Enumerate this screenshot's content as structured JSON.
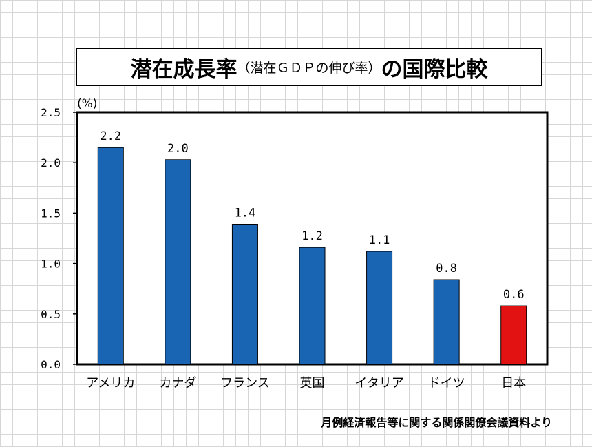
{
  "title": {
    "main": "潜在成長率",
    "sub": "（潜在ＧＤＰの伸び率）",
    "tail": "の国際比較"
  },
  "source": "月例経済報告等に関する関係閣僚会議資料より",
  "colors": {
    "bar": "#1a64b4",
    "highlight": "#e31212",
    "frame": "#000000"
  },
  "chart_data": {
    "type": "bar",
    "categories": [
      "アメリカ",
      "カナダ",
      "フランス",
      "英国",
      "イタリア",
      "ドイツ",
      "日本"
    ],
    "values": [
      2.15,
      2.03,
      1.39,
      1.16,
      1.12,
      0.84,
      0.58
    ],
    "data_labels": [
      "2.2",
      "2.0",
      "1.4",
      "1.2",
      "1.1",
      "0.8",
      "0.6"
    ],
    "highlight_category": "日本",
    "ylabel": "(%)",
    "ylim": [
      0,
      2.5
    ],
    "yticks": [
      "0.0",
      "0.5",
      "1.0",
      "1.5",
      "2.0",
      "2.5"
    ],
    "grid": false
  }
}
